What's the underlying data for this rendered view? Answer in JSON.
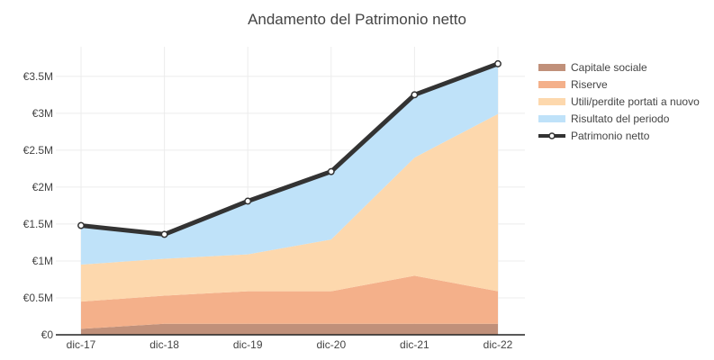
{
  "chart_data": {
    "type": "area",
    "title": "Andamento del Patrimonio netto",
    "xlabel": "",
    "ylabel": "",
    "categories": [
      "dic-17",
      "dic-18",
      "dic-19",
      "dic-20",
      "dic-21",
      "dic-22"
    ],
    "y_ticks": [
      "€0",
      "€0.5M",
      "€1M",
      "€1.5M",
      "€2M",
      "€2.5M",
      "€3M",
      "€3.5M"
    ],
    "y_tick_values": [
      0,
      0.5,
      1,
      1.5,
      2,
      2.5,
      3,
      3.5
    ],
    "ylim": [
      0,
      3.9
    ],
    "unit": "M €",
    "stacked": true,
    "grid": true,
    "legend_position": "right",
    "series": [
      {
        "name": "Capitale sociale",
        "kind": "area",
        "color": "#c0907a",
        "values": [
          0.08,
          0.15,
          0.15,
          0.15,
          0.15,
          0.15
        ]
      },
      {
        "name": "Riserve",
        "kind": "area",
        "color": "#f4b08a",
        "values": [
          0.37,
          0.38,
          0.44,
          0.44,
          0.65,
          0.44
        ]
      },
      {
        "name": "Utili/perdite portati a nuovo",
        "kind": "area",
        "color": "#fdd8ad",
        "values": [
          0.5,
          0.5,
          0.5,
          0.7,
          1.6,
          2.4
        ]
      },
      {
        "name": "Risultato del periodo",
        "kind": "area",
        "color": "#bfe2f9",
        "values": [
          0.53,
          0.33,
          0.72,
          0.92,
          0.85,
          0.68
        ]
      },
      {
        "name": "Patrimonio netto",
        "kind": "line",
        "color": "#333333",
        "values": [
          1.48,
          1.36,
          1.81,
          2.21,
          3.25,
          3.67
        ]
      }
    ]
  }
}
